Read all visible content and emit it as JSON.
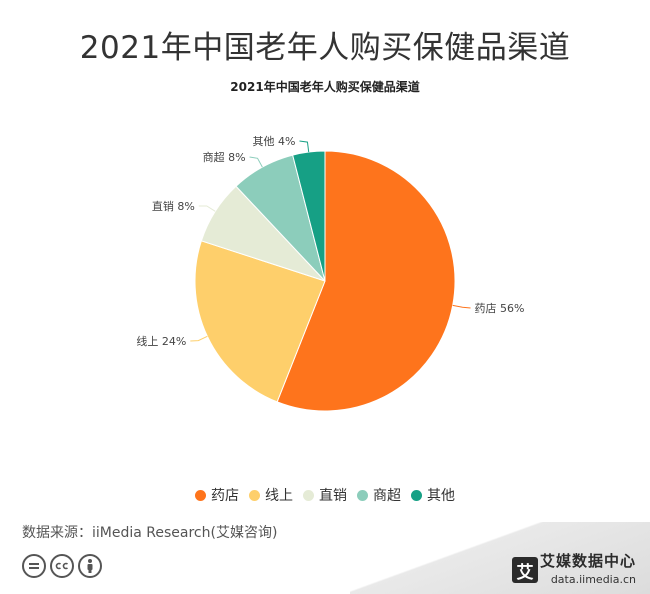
{
  "header": {
    "main_title": "2021年中国老年人购买保健品渠道"
  },
  "chart_data": {
    "type": "pie",
    "title": "2021年中国老年人购买保健品渠道",
    "unit": "%",
    "legend_placement": "bottom",
    "slices": [
      {
        "label": "药店",
        "value": 56,
        "display": "药店 56%",
        "color": "#fe741c"
      },
      {
        "label": "线上",
        "value": 24,
        "display": "线上 24%",
        "color": "#fecf6b"
      },
      {
        "label": "直销",
        "value": 8,
        "display": "直销 8%",
        "color": "#e5ebd6"
      },
      {
        "label": "商超",
        "value": 8,
        "display": "商超 8%",
        "color": "#8ccdbb"
      },
      {
        "label": "其他",
        "value": 4,
        "display": "其他 4%",
        "color": "#16a085"
      }
    ]
  },
  "footer": {
    "source": "数据来源：iiMedia Research(艾媒咨询)",
    "license_icons": [
      "equals-icon",
      "cc-icon",
      "person-icon"
    ],
    "brand_logo_char": "艾",
    "brand_name": "艾媒数据中心",
    "brand_url": "data.iimedia.cn"
  }
}
